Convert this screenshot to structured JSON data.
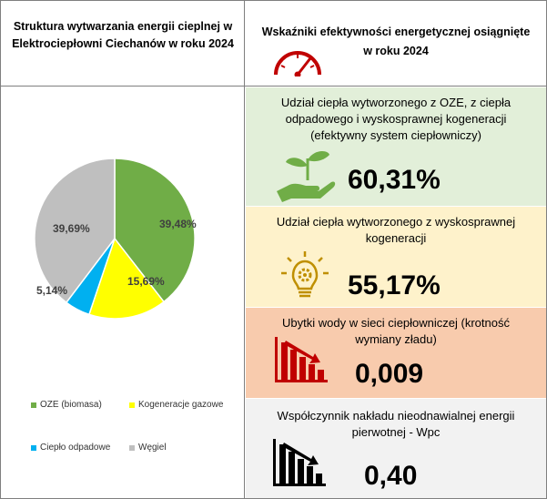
{
  "left_header": {
    "title_line1": "Struktura wytwarzania energii cieplnej w",
    "title_line2": "Elektrociepłowni Ciechanów w roku 2024"
  },
  "right_header": {
    "title_line1": "Wskaźniki efektywności energetycznej osiągnięte",
    "title_line2": "w roku 2024",
    "icon": "speedometer-icon"
  },
  "chart_data": {
    "type": "pie",
    "title": "Struktura wytwarzania energii cieplnej w Elektrociepłowni Ciechanów w roku 2024",
    "slices": [
      {
        "name": "OZE (biomasa)",
        "value": 39.48,
        "label": "39,48%",
        "color": "#70ad47"
      },
      {
        "name": "Kogeneracje gazowe",
        "value": 15.69,
        "label": "15,69%",
        "color": "#ffff00"
      },
      {
        "name": "Ciepło odpadowe",
        "value": 5.14,
        "label": "5,14%",
        "color": "#00b0f0"
      },
      {
        "name": "Węgiel",
        "value": 39.69,
        "label": "39,69%",
        "color": "#bfbfbf"
      }
    ],
    "legend_position": "bottom"
  },
  "indicators": [
    {
      "text_line1": "Udział ciepła wytworzonego z OZE, z ciepła",
      "text_line2": "odpadowego i wyskosprawnej kogeneracji",
      "text_line3": "(efektywny system ciepłowniczy)",
      "value": "60,31%",
      "icon": "plant-hand-icon",
      "bg": "#e2efd9"
    },
    {
      "text_line1": "Udział ciepła wytworzonego z wyskosprawnej",
      "text_line2": "kogeneracji",
      "value": "55,17%",
      "icon": "lightbulb-gear-icon",
      "bg": "#fef2cb"
    },
    {
      "text_line1": "Ubytki wody w sieci ciepłowniczej (krotność",
      "text_line2": "wymiany zładu)",
      "value": "0,009",
      "icon": "declining-bar-chart-icon",
      "bg": "#f8cbad"
    },
    {
      "text_line1": "Współczynnik nakładu nieodnawialnej energii",
      "text_line2": "pierwotnej - Wpc",
      "value": "0,40",
      "icon": "declining-bar-chart-icon",
      "bg": "#f2f2f2"
    }
  ]
}
